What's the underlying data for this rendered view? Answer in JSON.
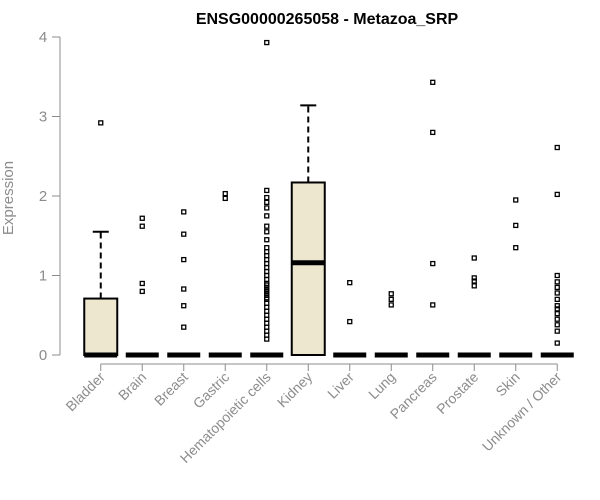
{
  "chart_data": {
    "type": "box",
    "title": "ENSG00000265058 - Metazoa_SRP",
    "xlabel": "",
    "ylabel": "Expression",
    "ylim": [
      0,
      4
    ],
    "yticks": [
      "0",
      "1",
      "2",
      "3",
      "4"
    ],
    "grid": false,
    "colors": {
      "box_fill": "#ede7cf",
      "box_line": "#000000",
      "axis": "#8c8c8c",
      "text": "#8c8c8c"
    },
    "categories": [
      "Bladder",
      "Brain",
      "Breast",
      "Gastric",
      "Hematopoietic cells",
      "Kidney",
      "Liver",
      "Lung",
      "Pancreas",
      "Prostate",
      "Skin",
      "Unknown / Other"
    ],
    "boxes": [
      {
        "q1": 0,
        "median": 0,
        "q3": 0.71,
        "whisker_low": 0,
        "whisker_high": 1.55,
        "outliers": [
          2.92
        ]
      },
      {
        "q1": 0,
        "median": 0,
        "q3": 0,
        "whisker_low": 0,
        "whisker_high": 0,
        "outliers": [
          0.8,
          0.9,
          1.62,
          1.72
        ]
      },
      {
        "q1": 0,
        "median": 0,
        "q3": 0,
        "whisker_low": 0,
        "whisker_high": 0,
        "outliers": [
          0.35,
          0.62,
          0.83,
          1.2,
          1.52,
          1.8
        ]
      },
      {
        "q1": 0,
        "median": 0,
        "q3": 0,
        "whisker_low": 0,
        "whisker_high": 0,
        "outliers": [
          1.97,
          2.03
        ]
      },
      {
        "q1": 0,
        "median": 0,
        "q3": 0,
        "whisker_low": 0,
        "whisker_high": 0,
        "outliers": [
          0.2,
          0.25,
          0.3,
          0.35,
          0.4,
          0.45,
          0.5,
          0.55,
          0.6,
          0.65,
          0.7,
          0.72,
          0.75,
          0.78,
          0.8,
          0.82,
          0.85,
          0.88,
          0.9,
          0.95,
          1.0,
          1.05,
          1.1,
          1.15,
          1.2,
          1.25,
          1.3,
          1.35,
          1.45,
          1.55,
          1.62,
          1.75,
          1.85,
          1.92,
          1.98,
          2.07,
          3.93
        ]
      },
      {
        "q1": 0,
        "median": 1.16,
        "q3": 2.17,
        "whisker_low": 0,
        "whisker_high": 3.14,
        "outliers": []
      },
      {
        "q1": 0,
        "median": 0,
        "q3": 0,
        "whisker_low": 0,
        "whisker_high": 0,
        "outliers": [
          0.42,
          0.91
        ]
      },
      {
        "q1": 0,
        "median": 0,
        "q3": 0,
        "whisker_low": 0,
        "whisker_high": 0,
        "outliers": [
          0.63,
          0.7,
          0.77
        ]
      },
      {
        "q1": 0,
        "median": 0,
        "q3": 0,
        "whisker_low": 0,
        "whisker_high": 0,
        "outliers": [
          0.63,
          1.15,
          2.8,
          3.43
        ]
      },
      {
        "q1": 0,
        "median": 0,
        "q3": 0,
        "whisker_low": 0,
        "whisker_high": 0,
        "outliers": [
          0.87,
          0.93,
          0.97,
          1.22
        ]
      },
      {
        "q1": 0,
        "median": 0,
        "q3": 0,
        "whisker_low": 0,
        "whisker_high": 0,
        "outliers": [
          1.35,
          1.63,
          1.95
        ]
      },
      {
        "q1": 0,
        "median": 0,
        "q3": 0,
        "whisker_low": 0,
        "whisker_high": 0,
        "outliers": [
          0.15,
          0.3,
          0.38,
          0.45,
          0.52,
          0.58,
          0.62,
          0.7,
          0.78,
          0.85,
          0.92,
          1.0,
          2.02,
          2.61
        ]
      }
    ]
  }
}
